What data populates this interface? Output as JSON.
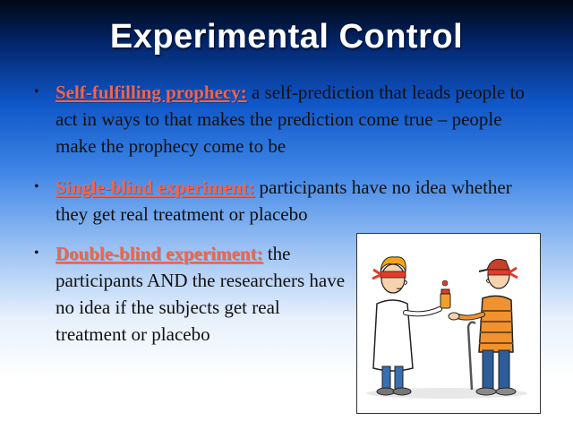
{
  "slide": {
    "title": "Experimental Control",
    "bullets": [
      {
        "term": "Self-fulfilling prophecy:",
        "text": " a self-prediction that leads people to act in ways to that makes the prediction come true – people make the prophecy come to be"
      },
      {
        "term": "Single-blind experiment:",
        "text": " participants have no idea whether they get real treatment or placebo"
      },
      {
        "term": "Double-blind experiment:",
        "text": " the participants AND the researchers have no idea if the subjects get real treatment or placebo"
      }
    ],
    "bullet_glyph": "•",
    "colors": {
      "term": "#f4634a",
      "title": "#ffffff",
      "body_text": "#101010"
    },
    "cartoon_icon": "blindfolded-doctor-and-patient-illustration"
  }
}
